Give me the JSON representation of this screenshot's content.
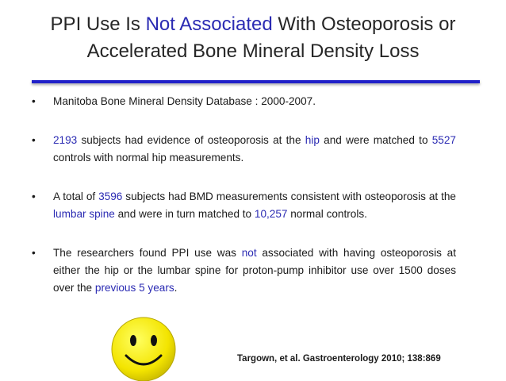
{
  "title": {
    "lines": [
      [
        {
          "text": "PPI Use Is "
        },
        {
          "text": "Not Associated",
          "color": "#2b2bb3"
        },
        {
          "text": " With Osteoporosis or"
        }
      ],
      [
        {
          "text": "Accelerated Bone Mineral Density Loss"
        }
      ]
    ],
    "rule_color": "#1f1fc8"
  },
  "bullets": [
    [
      {
        "text": "Manitoba Bone Mineral Density Database : 2000-2007."
      }
    ],
    [
      {
        "text": "2193",
        "color": "#2b2bb3"
      },
      {
        "text": " subjects had evidence of osteoporosis at the "
      },
      {
        "text": "hip",
        "color": "#2b2bb3"
      },
      {
        "text": " and were matched to "
      },
      {
        "text": "5527",
        "color": "#2b2bb3"
      },
      {
        "text": " controls with normal hip measurements."
      }
    ],
    [
      {
        "text": "A total of "
      },
      {
        "text": "3596",
        "color": "#2b2bb3"
      },
      {
        "text": " subjects had BMD measurements consistent with osteoporosis at the "
      },
      {
        "text": "lumbar spine",
        "color": "#2b2bb3"
      },
      {
        "text": " and were in turn matched to "
      },
      {
        "text": "10,257",
        "color": "#2b2bb3"
      },
      {
        "text": " normal controls."
      }
    ],
    [
      {
        "text": "The researchers found PPI use was "
      },
      {
        "text": "not",
        "color": "#2b2bb3"
      },
      {
        "text": " associated with having osteoporosis at either the hip or the lumbar spine for proton-pump inhibitor use over 1500 doses over the "
      },
      {
        "text": "previous 5 years",
        "color": "#2b2bb3"
      },
      {
        "text": "."
      }
    ]
  ],
  "bullet_symbol": "•",
  "citation": "Targown, et al. Gastroenterology 2010; 138:869"
}
